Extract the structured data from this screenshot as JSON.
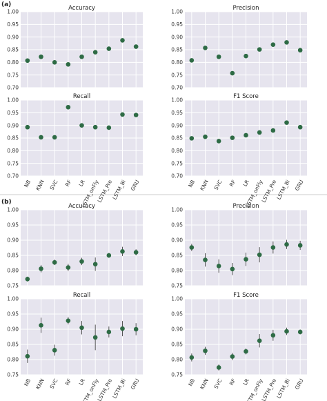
{
  "figure": {
    "marker_color": "#2e6b45",
    "errbar_color": "#555555",
    "categories": [
      "NB",
      "KNN",
      "SVC",
      "RF",
      "LR",
      "LSTM_onFly",
      "LSTM_Pre",
      "LSTM_Bi",
      "GRU"
    ]
  },
  "chart_data": [
    {
      "type": "scatter",
      "section": "(a)",
      "title": "Accuracy",
      "ylim": [
        0.7,
        1.0
      ],
      "yticks": [
        "0.70",
        "0.75",
        "0.80",
        "0.85",
        "0.90",
        "0.95",
        "1.00"
      ],
      "show_x_labels": false,
      "values": [
        0.807,
        0.822,
        0.8,
        0.792,
        0.822,
        0.84,
        0.854,
        0.887,
        0.862
      ]
    },
    {
      "type": "scatter",
      "section": "(a)",
      "title": "Precision",
      "ylim": [
        0.7,
        1.0
      ],
      "yticks": [
        "0.70",
        "0.75",
        "0.80",
        "0.85",
        "0.90",
        "0.95",
        "1.00"
      ],
      "show_x_labels": false,
      "values": [
        0.808,
        0.857,
        0.822,
        0.757,
        0.825,
        0.851,
        0.87,
        0.879,
        0.848
      ]
    },
    {
      "type": "scatter",
      "section": "(a)",
      "title": "Recall",
      "ylim": [
        0.7,
        1.0
      ],
      "yticks": [
        "0.70",
        "0.75",
        "0.80",
        "0.85",
        "0.90",
        "0.95",
        "1.00"
      ],
      "show_x_labels": true,
      "values": [
        0.893,
        0.853,
        0.853,
        0.972,
        0.9,
        0.893,
        0.891,
        0.943,
        0.941
      ]
    },
    {
      "type": "scatter",
      "section": "(a)",
      "title": "F1 Score",
      "ylim": [
        0.7,
        1.0
      ],
      "yticks": [
        "0.70",
        "0.75",
        "0.80",
        "0.85",
        "0.90",
        "0.95",
        "1.00"
      ],
      "show_x_labels": true,
      "values": [
        0.849,
        0.855,
        0.838,
        0.851,
        0.861,
        0.872,
        0.88,
        0.911,
        0.893
      ]
    },
    {
      "type": "scatter",
      "section": "(b)",
      "title": "Accuracy",
      "ylim": [
        0.75,
        1.0
      ],
      "yticks": [
        "0.75",
        "0.80",
        "0.85",
        "0.90",
        "0.95",
        "1.00"
      ],
      "show_x_labels": false,
      "values": [
        0.772,
        0.806,
        0.827,
        0.81,
        0.83,
        0.821,
        0.85,
        0.863,
        0.86
      ],
      "error": [
        0.008,
        0.012,
        0.009,
        0.012,
        0.012,
        0.022,
        0.008,
        0.015,
        0.01
      ]
    },
    {
      "type": "scatter",
      "section": "(b)",
      "title": "Precision",
      "ylim": [
        0.75,
        1.0
      ],
      "yticks": [
        "0.75",
        "0.80",
        "0.85",
        "0.90",
        "0.95",
        "1.00"
      ],
      "show_x_labels": false,
      "values": [
        0.876,
        0.835,
        0.815,
        0.805,
        0.837,
        0.852,
        0.876,
        0.886,
        0.883
      ],
      "error": [
        0.012,
        0.022,
        0.022,
        0.02,
        0.022,
        0.025,
        0.02,
        0.015,
        0.015
      ]
    },
    {
      "type": "scatter",
      "section": "(b)",
      "title": "Recall",
      "ylim": [
        0.75,
        1.0
      ],
      "yticks": [
        "0.75",
        "0.80",
        "0.85",
        "0.90",
        "0.95",
        "1.00"
      ],
      "show_x_labels": true,
      "values": [
        0.811,
        0.913,
        0.831,
        0.928,
        0.905,
        0.873,
        0.891,
        0.902,
        0.9
      ],
      "error": [
        0.022,
        0.025,
        0.018,
        0.012,
        0.022,
        0.042,
        0.018,
        0.025,
        0.02
      ]
    },
    {
      "type": "scatter",
      "section": "(b)",
      "title": "F1 Score",
      "ylim": [
        0.75,
        1.0
      ],
      "yticks": [
        "0.75",
        "0.80",
        "0.85",
        "0.90",
        "0.95",
        "1.00"
      ],
      "show_x_labels": true,
      "values": [
        0.807,
        0.829,
        0.774,
        0.81,
        0.827,
        0.862,
        0.88,
        0.893,
        0.891
      ],
      "error": [
        0.013,
        0.013,
        0.01,
        0.012,
        0.01,
        0.022,
        0.018,
        0.012,
        0.008
      ]
    }
  ]
}
